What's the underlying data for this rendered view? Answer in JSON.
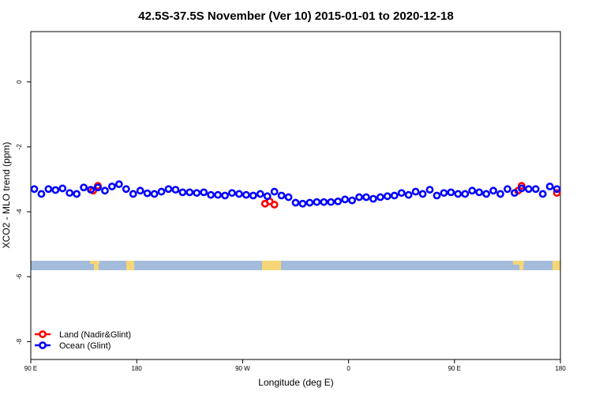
{
  "chart_data": {
    "type": "scatter",
    "title": "42.5S-37.5S November (Ver 10)   2015-01-01 to 2020-12-18",
    "x_label": "Longitude (deg E)",
    "y_label": "XCO2 - MLO trend (ppm)",
    "xlim": [
      90,
      540
    ],
    "ylim": [
      -8.55,
      1.55
    ],
    "xticks": [
      {
        "value": 90,
        "label": "90 E"
      },
      {
        "value": 180,
        "label": "180"
      },
      {
        "value": 270,
        "label": "90 W"
      },
      {
        "value": 360,
        "label": "0"
      },
      {
        "value": 450,
        "label": "90 E"
      },
      {
        "value": 540,
        "label": "180"
      }
    ],
    "yticks": [
      0,
      -2,
      -4,
      -6,
      -8
    ],
    "legend": "bottom-left",
    "series": [
      {
        "name": "Land (Nadir&Glint)",
        "color": "#ff0000",
        "x": [
          143,
          147,
          289,
          293,
          297,
          504,
          507,
          537
        ],
        "values": [
          -3.35,
          -3.2,
          -3.75,
          -3.68,
          -3.78,
          -3.35,
          -3.2,
          -3.42
        ]
      },
      {
        "name": "Ocean (Glint)",
        "color": "#0000ff",
        "x": [
          93,
          99,
          105,
          111,
          117,
          123,
          129,
          135,
          141,
          147,
          153,
          159,
          165,
          171,
          177,
          183,
          189,
          195,
          201,
          207,
          213,
          219,
          225,
          231,
          237,
          243,
          249,
          255,
          261,
          267,
          273,
          279,
          285,
          291,
          297,
          303,
          309,
          315,
          321,
          327,
          333,
          339,
          345,
          351,
          357,
          363,
          369,
          375,
          381,
          387,
          393,
          399,
          405,
          411,
          417,
          423,
          429,
          435,
          441,
          447,
          453,
          459,
          465,
          471,
          477,
          483,
          489,
          495,
          501,
          507,
          513,
          519,
          525,
          531,
          537
        ],
        "values": [
          -3.3,
          -3.45,
          -3.3,
          -3.33,
          -3.28,
          -3.42,
          -3.45,
          -3.25,
          -3.32,
          -3.25,
          -3.35,
          -3.22,
          -3.15,
          -3.3,
          -3.45,
          -3.35,
          -3.43,
          -3.45,
          -3.38,
          -3.3,
          -3.32,
          -3.4,
          -3.4,
          -3.42,
          -3.4,
          -3.48,
          -3.48,
          -3.5,
          -3.42,
          -3.45,
          -3.48,
          -3.5,
          -3.45,
          -3.52,
          -3.38,
          -3.5,
          -3.55,
          -3.72,
          -3.75,
          -3.72,
          -3.7,
          -3.7,
          -3.7,
          -3.68,
          -3.62,
          -3.65,
          -3.55,
          -3.55,
          -3.6,
          -3.55,
          -3.52,
          -3.5,
          -3.42,
          -3.48,
          -3.38,
          -3.45,
          -3.32,
          -3.5,
          -3.42,
          -3.4,
          -3.45,
          -3.45,
          -3.35,
          -3.4,
          -3.45,
          -3.35,
          -3.45,
          -3.3,
          -3.42,
          -3.28,
          -3.3,
          -3.3,
          -3.45,
          -3.22,
          -3.3
        ]
      }
    ]
  }
}
